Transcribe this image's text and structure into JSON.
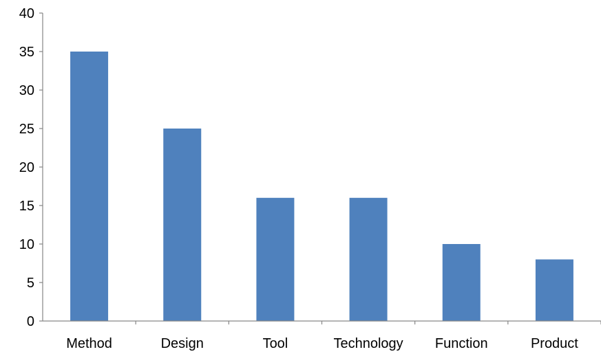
{
  "chart_data": {
    "type": "bar",
    "title": "",
    "xlabel": "",
    "ylabel": "",
    "categories": [
      "Method",
      "Design",
      "Tool",
      "Technology",
      "Function",
      "Product"
    ],
    "values": [
      35,
      25,
      16,
      16,
      10,
      8
    ],
    "ylim": [
      0,
      40
    ],
    "yticks": [
      "0",
      "5",
      "10",
      "15",
      "20",
      "25",
      "30",
      "35",
      "40"
    ],
    "grid": false,
    "legend": "none",
    "bar_color": "#4F81BD"
  }
}
